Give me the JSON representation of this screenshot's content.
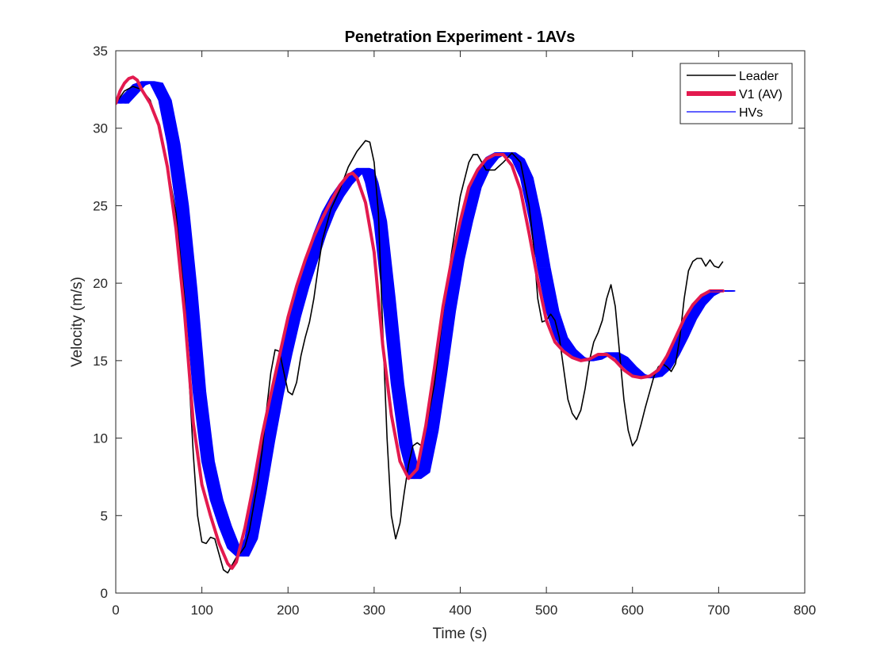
{
  "chart_data": {
    "type": "line",
    "title": "Penetration Experiment - 1AVs",
    "xlabel": "Time (s)",
    "ylabel": "Velocity (m/s)",
    "xlim": [
      0,
      800
    ],
    "ylim": [
      0,
      35
    ],
    "xticks": [
      0,
      100,
      200,
      300,
      400,
      500,
      600,
      700,
      800
    ],
    "yticks": [
      0,
      5,
      10,
      15,
      20,
      25,
      30,
      35
    ],
    "grid": false,
    "legend_position": "top-right",
    "series": [
      {
        "name": "Leader",
        "color": "#000000",
        "points": [
          [
            0,
            31.6
          ],
          [
            10,
            32.4
          ],
          [
            20,
            32.7
          ],
          [
            30,
            32.5
          ],
          [
            40,
            31.8
          ],
          [
            50,
            30.2
          ],
          [
            60,
            27.6
          ],
          [
            70,
            24.5
          ],
          [
            80,
            19.0
          ],
          [
            85,
            14.0
          ],
          [
            90,
            9.0
          ],
          [
            95,
            5.0
          ],
          [
            100,
            3.3
          ],
          [
            105,
            3.2
          ],
          [
            110,
            3.6
          ],
          [
            115,
            3.5
          ],
          [
            120,
            2.5
          ],
          [
            125,
            1.5
          ],
          [
            130,
            1.3
          ],
          [
            135,
            1.8
          ],
          [
            140,
            2.3
          ],
          [
            145,
            2.6
          ],
          [
            150,
            3.0
          ],
          [
            155,
            4.0
          ],
          [
            160,
            5.6
          ],
          [
            165,
            7.2
          ],
          [
            170,
            9.2
          ],
          [
            175,
            11.8
          ],
          [
            180,
            14.2
          ],
          [
            185,
            15.7
          ],
          [
            190,
            15.6
          ],
          [
            195,
            14.3
          ],
          [
            200,
            13.0
          ],
          [
            205,
            12.8
          ],
          [
            210,
            13.6
          ],
          [
            215,
            15.3
          ],
          [
            220,
            16.5
          ],
          [
            225,
            17.5
          ],
          [
            230,
            19.0
          ],
          [
            235,
            21.0
          ],
          [
            240,
            22.8
          ],
          [
            250,
            24.8
          ],
          [
            260,
            26.0
          ],
          [
            270,
            27.5
          ],
          [
            280,
            28.5
          ],
          [
            290,
            29.2
          ],
          [
            295,
            29.1
          ],
          [
            300,
            27.8
          ],
          [
            305,
            24.5
          ],
          [
            310,
            17.0
          ],
          [
            315,
            10.0
          ],
          [
            320,
            5.0
          ],
          [
            325,
            3.5
          ],
          [
            330,
            4.5
          ],
          [
            335,
            6.5
          ],
          [
            340,
            8.3
          ],
          [
            345,
            9.5
          ],
          [
            350,
            9.7
          ],
          [
            355,
            9.5
          ],
          [
            360,
            10.5
          ],
          [
            370,
            13.5
          ],
          [
            380,
            18.0
          ],
          [
            390,
            22.0
          ],
          [
            400,
            25.6
          ],
          [
            410,
            27.8
          ],
          [
            415,
            28.3
          ],
          [
            420,
            28.3
          ],
          [
            425,
            27.8
          ],
          [
            430,
            27.3
          ],
          [
            440,
            27.3
          ],
          [
            450,
            27.8
          ],
          [
            460,
            28.4
          ],
          [
            470,
            27.8
          ],
          [
            480,
            25.0
          ],
          [
            485,
            22.5
          ],
          [
            490,
            19.0
          ],
          [
            495,
            17.5
          ],
          [
            500,
            17.6
          ],
          [
            505,
            18.0
          ],
          [
            510,
            17.6
          ],
          [
            515,
            16.5
          ],
          [
            520,
            14.5
          ],
          [
            525,
            12.5
          ],
          [
            530,
            11.6
          ],
          [
            535,
            11.2
          ],
          [
            540,
            11.8
          ],
          [
            545,
            13.2
          ],
          [
            550,
            15.0
          ],
          [
            555,
            16.2
          ],
          [
            560,
            16.8
          ],
          [
            565,
            17.6
          ],
          [
            570,
            19.0
          ],
          [
            575,
            19.9
          ],
          [
            580,
            18.5
          ],
          [
            585,
            15.5
          ],
          [
            590,
            12.5
          ],
          [
            595,
            10.5
          ],
          [
            600,
            9.5
          ],
          [
            605,
            9.9
          ],
          [
            610,
            10.9
          ],
          [
            615,
            12.0
          ],
          [
            620,
            13.0
          ],
          [
            625,
            14.0
          ],
          [
            630,
            14.6
          ],
          [
            635,
            14.8
          ],
          [
            640,
            14.6
          ],
          [
            645,
            14.3
          ],
          [
            650,
            14.8
          ],
          [
            655,
            16.5
          ],
          [
            660,
            19.0
          ],
          [
            665,
            20.8
          ],
          [
            670,
            21.4
          ],
          [
            675,
            21.6
          ],
          [
            680,
            21.6
          ],
          [
            685,
            21.1
          ],
          [
            690,
            21.5
          ],
          [
            695,
            21.1
          ],
          [
            700,
            21.0
          ],
          [
            705,
            21.4
          ]
        ]
      },
      {
        "name": "V1 (AV)",
        "color": "#e31a4f",
        "points": [
          [
            0,
            31.6
          ],
          [
            5,
            32.4
          ],
          [
            10,
            32.9
          ],
          [
            15,
            33.2
          ],
          [
            20,
            33.3
          ],
          [
            25,
            33.1
          ],
          [
            30,
            32.5
          ],
          [
            40,
            31.6
          ],
          [
            50,
            30.2
          ],
          [
            60,
            27.5
          ],
          [
            70,
            23.5
          ],
          [
            80,
            18.0
          ],
          [
            90,
            11.0
          ],
          [
            100,
            7.0
          ],
          [
            110,
            5.0
          ],
          [
            120,
            3.2
          ],
          [
            130,
            1.9
          ],
          [
            135,
            1.6
          ],
          [
            140,
            2.0
          ],
          [
            150,
            4.2
          ],
          [
            160,
            7.0
          ],
          [
            170,
            10.2
          ],
          [
            180,
            12.8
          ],
          [
            190,
            15.3
          ],
          [
            200,
            17.8
          ],
          [
            210,
            19.8
          ],
          [
            220,
            21.5
          ],
          [
            230,
            23.0
          ],
          [
            240,
            24.2
          ],
          [
            250,
            25.3
          ],
          [
            260,
            26.3
          ],
          [
            270,
            27.0
          ],
          [
            275,
            27.1
          ],
          [
            280,
            26.8
          ],
          [
            290,
            25.2
          ],
          [
            300,
            22.0
          ],
          [
            310,
            16.0
          ],
          [
            320,
            11.5
          ],
          [
            330,
            8.5
          ],
          [
            340,
            7.4
          ],
          [
            350,
            8.0
          ],
          [
            360,
            10.8
          ],
          [
            370,
            14.5
          ],
          [
            380,
            18.5
          ],
          [
            390,
            21.5
          ],
          [
            400,
            24.0
          ],
          [
            410,
            26.2
          ],
          [
            420,
            27.3
          ],
          [
            430,
            28.0
          ],
          [
            440,
            28.3
          ],
          [
            450,
            28.3
          ],
          [
            460,
            27.6
          ],
          [
            470,
            26.0
          ],
          [
            480,
            23.2
          ],
          [
            490,
            20.2
          ],
          [
            500,
            17.6
          ],
          [
            510,
            16.2
          ],
          [
            520,
            15.6
          ],
          [
            530,
            15.2
          ],
          [
            540,
            15.0
          ],
          [
            550,
            15.1
          ],
          [
            560,
            15.4
          ],
          [
            570,
            15.4
          ],
          [
            580,
            15.0
          ],
          [
            590,
            14.4
          ],
          [
            600,
            14.0
          ],
          [
            610,
            13.9
          ],
          [
            620,
            14.0
          ],
          [
            630,
            14.4
          ],
          [
            640,
            15.3
          ],
          [
            650,
            16.5
          ],
          [
            660,
            17.7
          ],
          [
            670,
            18.6
          ],
          [
            680,
            19.2
          ],
          [
            690,
            19.5
          ],
          [
            700,
            19.5
          ],
          [
            705,
            19.5
          ]
        ]
      },
      {
        "name": "HVs",
        "color": "#0000ff",
        "points": [
          [
            0,
            31.6
          ],
          [
            10,
            32.2
          ],
          [
            20,
            32.8
          ],
          [
            30,
            33.0
          ],
          [
            40,
            32.9
          ],
          [
            50,
            31.8
          ],
          [
            60,
            29.0
          ],
          [
            70,
            25.0
          ],
          [
            80,
            19.5
          ],
          [
            90,
            13.0
          ],
          [
            100,
            8.5
          ],
          [
            110,
            6.0
          ],
          [
            120,
            4.3
          ],
          [
            130,
            2.9
          ],
          [
            140,
            2.4
          ],
          [
            150,
            3.5
          ],
          [
            160,
            6.5
          ],
          [
            170,
            9.8
          ],
          [
            180,
            12.8
          ],
          [
            190,
            15.4
          ],
          [
            200,
            17.8
          ],
          [
            210,
            19.8
          ],
          [
            220,
            21.5
          ],
          [
            230,
            23.2
          ],
          [
            240,
            24.6
          ],
          [
            250,
            25.6
          ],
          [
            260,
            26.4
          ],
          [
            270,
            27.0
          ],
          [
            280,
            27.4
          ],
          [
            285,
            27.3
          ],
          [
            290,
            26.5
          ],
          [
            300,
            24.0
          ],
          [
            310,
            19.0
          ],
          [
            320,
            13.5
          ],
          [
            330,
            9.5
          ],
          [
            340,
            7.4
          ],
          [
            350,
            7.8
          ],
          [
            360,
            10.5
          ],
          [
            370,
            14.2
          ],
          [
            380,
            18.2
          ],
          [
            390,
            21.5
          ],
          [
            400,
            24.0
          ],
          [
            410,
            26.2
          ],
          [
            420,
            27.4
          ],
          [
            430,
            28.1
          ],
          [
            440,
            28.4
          ],
          [
            450,
            28.4
          ],
          [
            460,
            28.0
          ],
          [
            470,
            26.8
          ],
          [
            480,
            24.2
          ],
          [
            490,
            21.0
          ],
          [
            500,
            18.2
          ],
          [
            510,
            16.5
          ],
          [
            520,
            15.7
          ],
          [
            530,
            15.2
          ],
          [
            540,
            15.0
          ],
          [
            550,
            15.1
          ],
          [
            560,
            15.4
          ],
          [
            570,
            15.5
          ],
          [
            580,
            15.2
          ],
          [
            590,
            14.6
          ],
          [
            600,
            14.1
          ],
          [
            610,
            13.9
          ],
          [
            620,
            14.0
          ],
          [
            630,
            14.5
          ],
          [
            640,
            15.4
          ],
          [
            650,
            16.5
          ],
          [
            660,
            17.7
          ],
          [
            670,
            18.6
          ],
          [
            680,
            19.2
          ],
          [
            690,
            19.5
          ],
          [
            700,
            19.5
          ],
          [
            705,
            19.5
          ]
        ]
      }
    ]
  }
}
